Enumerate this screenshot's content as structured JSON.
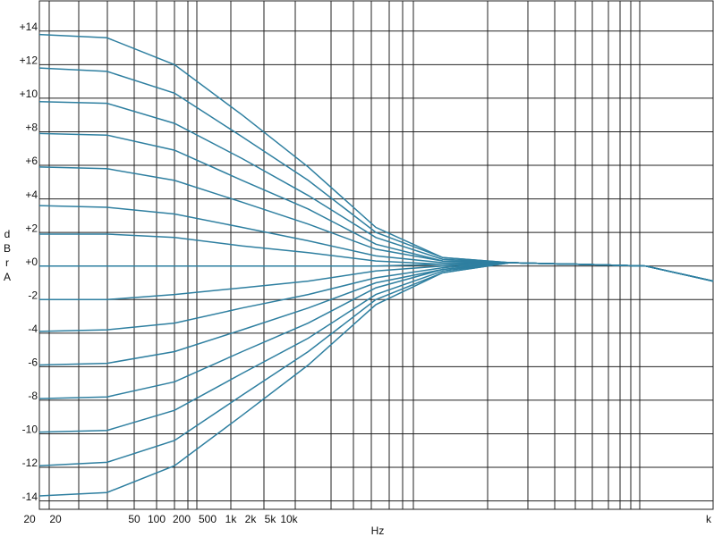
{
  "chart_data": {
    "type": "line",
    "color": "#2e7fa0",
    "log_x": true,
    "grid": true,
    "ylabel": "dBrA",
    "xlabel": "Hz",
    "x": [
      20,
      40,
      80,
      160,
      315,
      630,
      1250,
      2500,
      5000,
      10000,
      20000
    ],
    "xlim": [
      20,
      20000
    ],
    "xtick_labels": [
      "20",
      "20",
      "50",
      "100",
      "200",
      "500",
      "1k",
      "2k",
      "5k",
      "10k",
      "k"
    ],
    "ylim": [
      -14.5,
      15.8
    ],
    "yticks": [
      {
        "value": 14,
        "label": "+14"
      },
      {
        "value": 12,
        "label": "+12"
      },
      {
        "value": 10,
        "label": "+10"
      },
      {
        "value": 8,
        "label": "+8"
      },
      {
        "value": 6,
        "label": "+6"
      },
      {
        "value": 4,
        "label": "+4"
      },
      {
        "value": 2,
        "label": "+2"
      },
      {
        "value": 0,
        "label": "+0"
      },
      -2,
      -4,
      -6,
      -8,
      -10,
      -12,
      -14
    ],
    "series": [
      {
        "values": [
          13.8,
          13.6,
          12.0,
          9.0,
          5.9,
          2.3,
          0.5,
          0.2,
          0.1,
          0,
          -0.9
        ]
      },
      {
        "values": [
          11.8,
          11.6,
          10.3,
          7.7,
          5.1,
          2.0,
          0.5,
          0.2,
          0.1,
          0,
          -0.9
        ]
      },
      {
        "values": [
          9.8,
          9.7,
          8.5,
          6.4,
          4.2,
          1.7,
          0.4,
          0.2,
          0.1,
          0,
          -0.9
        ]
      },
      {
        "values": [
          7.9,
          7.8,
          6.9,
          5.1,
          3.4,
          1.3,
          0.3,
          0.2,
          0.1,
          0,
          -0.9
        ]
      },
      {
        "values": [
          5.9,
          5.8,
          5.1,
          3.8,
          2.5,
          1.0,
          0.3,
          0.2,
          0.1,
          0,
          -0.9
        ]
      },
      {
        "values": [
          3.6,
          3.5,
          3.1,
          2.3,
          1.5,
          0.6,
          0.2,
          0.2,
          0.1,
          0,
          -0.9
        ]
      },
      {
        "values": [
          1.9,
          1.9,
          1.7,
          1.2,
          0.8,
          0.3,
          0.1,
          0.2,
          0.1,
          0,
          -0.9
        ]
      },
      {
        "values": [
          0,
          0,
          0,
          0,
          0,
          0,
          0.1,
          0.2,
          0.1,
          0,
          -0.9
        ]
      },
      {
        "values": [
          -2,
          -2.0,
          -1.7,
          -1.3,
          -0.9,
          -0.3,
          0,
          0.2,
          0.1,
          0,
          -0.9
        ]
      },
      {
        "values": [
          -3.9,
          -3.8,
          -3.4,
          -2.5,
          -1.7,
          -0.7,
          -0.1,
          0.2,
          0.1,
          0,
          -0.9
        ]
      },
      {
        "values": [
          -5.9,
          -5.8,
          -5.1,
          -3.8,
          -2.5,
          -1.0,
          -0.2,
          0.2,
          0.1,
          0,
          -0.9
        ]
      },
      {
        "values": [
          -7.9,
          -7.8,
          -6.9,
          -5.1,
          -3.4,
          -1.3,
          -0.2,
          0.2,
          0.1,
          0,
          -0.9
        ]
      },
      {
        "values": [
          -9.9,
          -9.8,
          -8.6,
          -6.4,
          -4.3,
          -1.7,
          -0.3,
          0.2,
          0.1,
          0,
          -0.9
        ]
      },
      {
        "values": [
          -11.9,
          -11.7,
          -10.4,
          -7.7,
          -5.1,
          -2.0,
          -0.4,
          0.2,
          0.1,
          0,
          -0.9
        ]
      },
      {
        "values": [
          -13.7,
          -13.5,
          -11.9,
          -8.9,
          -5.9,
          -2.3,
          -0.4,
          0.2,
          0.1,
          0,
          -0.9
        ]
      }
    ]
  }
}
